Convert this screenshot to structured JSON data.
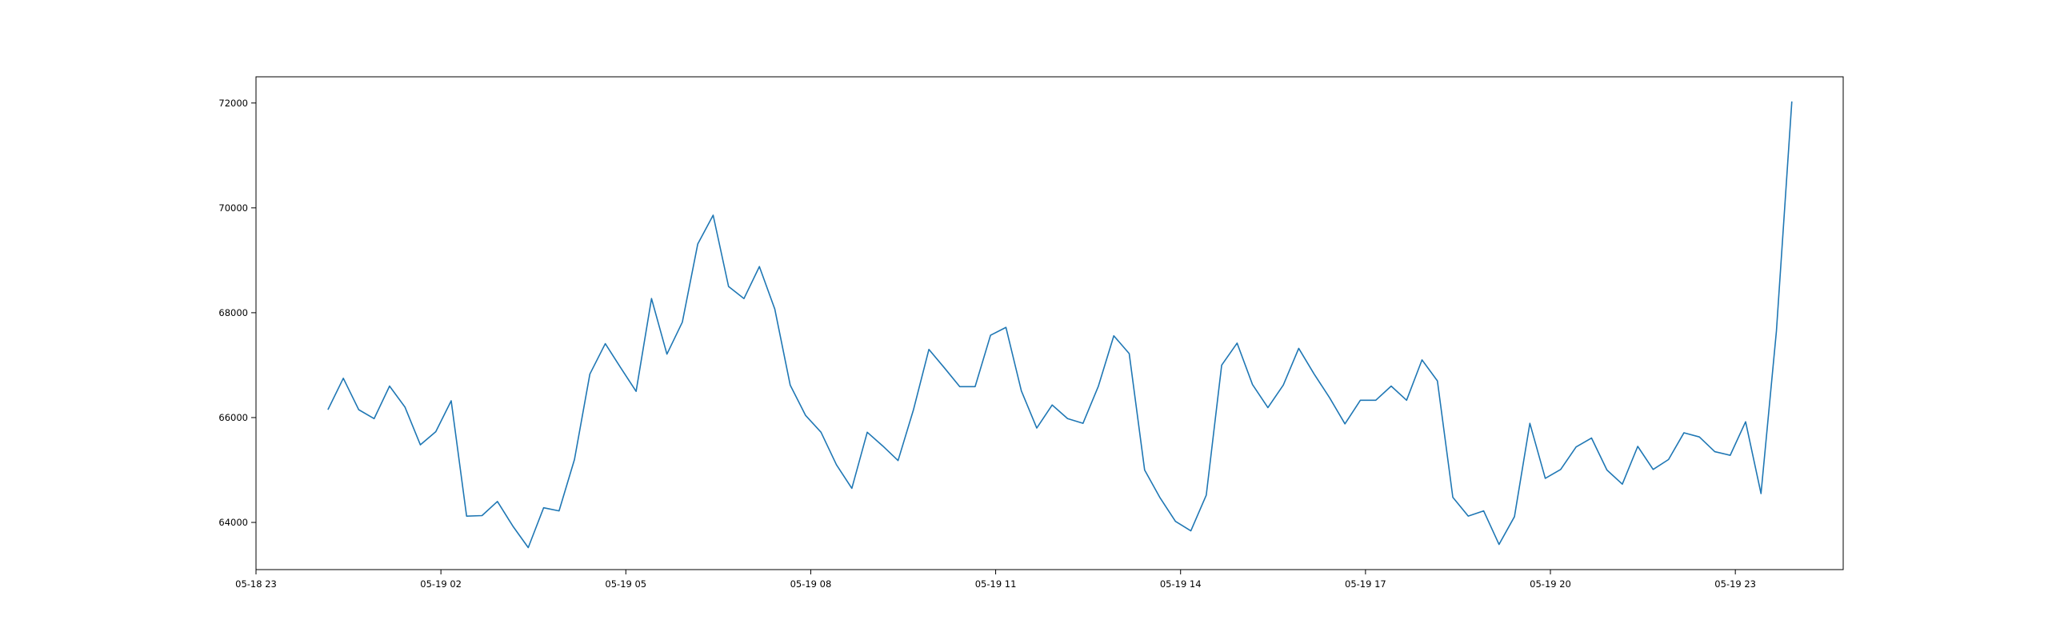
{
  "chart_data": {
    "type": "line",
    "title": "",
    "xlabel": "",
    "ylabel": "",
    "x_ticks": [
      "05-18 23",
      "05-19 02",
      "05-19 05",
      "05-19 08",
      "05-19 11",
      "05-19 14",
      "05-19 17",
      "05-19 20",
      "05-19 23"
    ],
    "y_ticks": [
      "64000",
      "66000",
      "68000",
      "70000",
      "72000"
    ],
    "xlim": [
      "2024-05-18 23:00",
      "2024-05-20 00:45"
    ],
    "ylim": [
      63100,
      72500
    ],
    "grid": false,
    "line_color": "#1f77b4",
    "series": [
      {
        "x_start": "2024-05-19 00:10",
        "x_step_minutes": 15,
        "values": [
          66150,
          66750,
          66150,
          65980,
          66600,
          66200,
          65480,
          65730,
          66320,
          64120,
          64130,
          64400,
          63930,
          63520,
          64280,
          64220,
          65200,
          66830,
          67410,
          66950,
          66500,
          68270,
          67210,
          67820,
          69310,
          69860,
          68500,
          68270,
          68880,
          68070,
          66620,
          66040,
          65720,
          65100,
          64650,
          65720,
          65460,
          65180,
          66150,
          67300,
          66950,
          66590,
          66590,
          67570,
          67720,
          66510,
          65800,
          66240,
          65980,
          65890,
          66600,
          67560,
          67220,
          65000,
          64470,
          64020,
          63840,
          64520,
          67000,
          67420,
          66630,
          66190,
          66620,
          67320,
          66830,
          66380,
          65880,
          66330,
          66330,
          66600,
          66330,
          67100,
          66700,
          64480,
          64120,
          64220,
          63580,
          64110,
          65890,
          64840,
          65010,
          65440,
          65610,
          65000,
          64730,
          65450,
          65010,
          65200,
          65710,
          65630,
          65350,
          65280,
          65920,
          64550,
          67650,
          72030
        ]
      }
    ]
  }
}
